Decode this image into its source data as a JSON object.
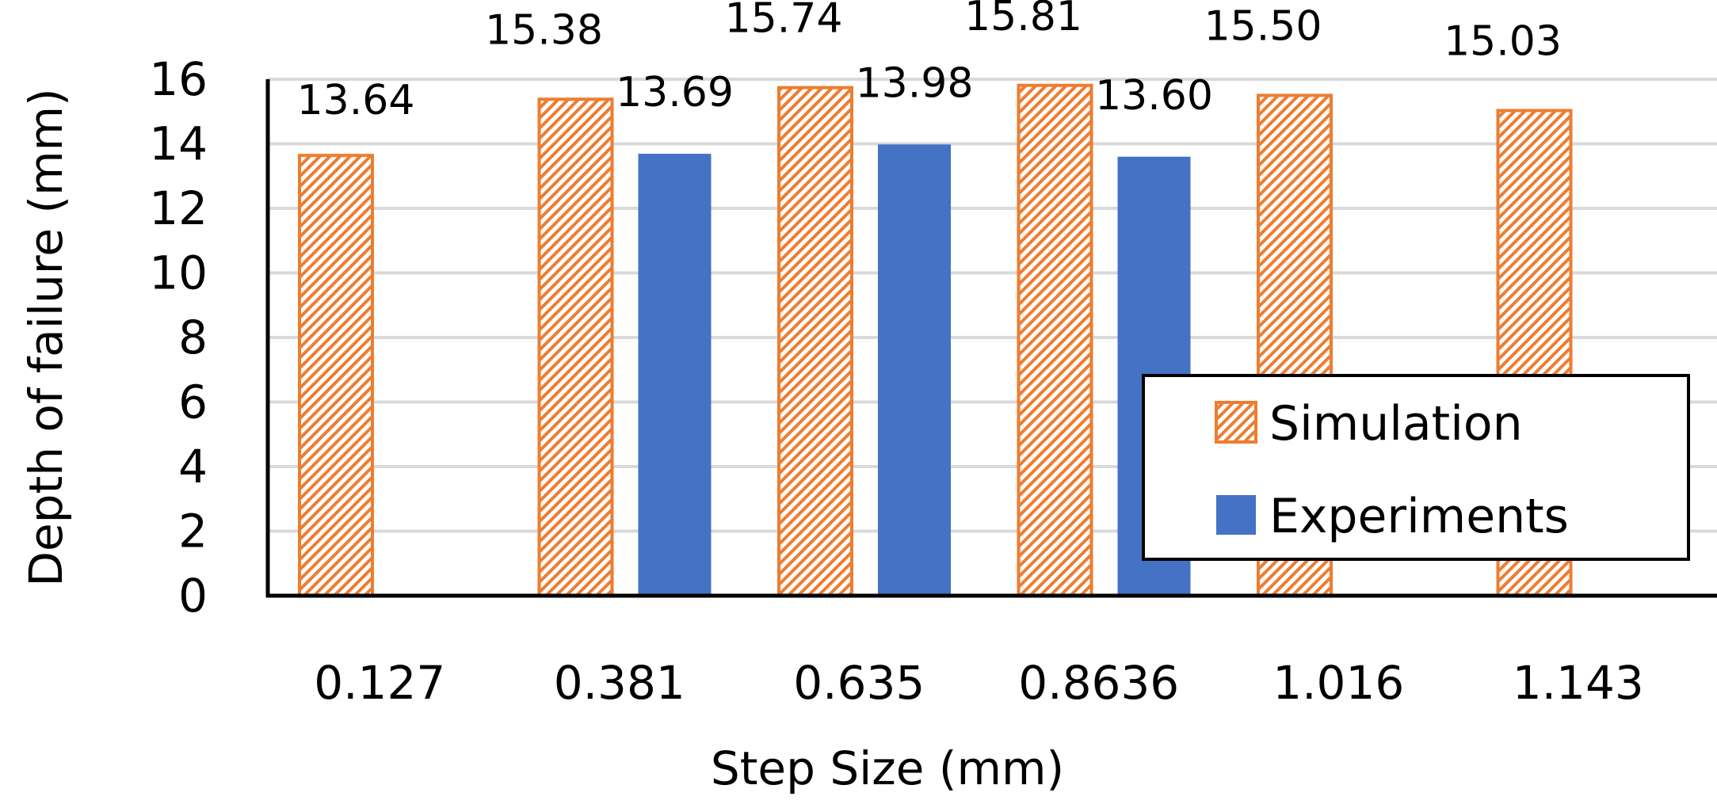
{
  "chart_data": {
    "type": "bar",
    "title": "",
    "xlabel": "Step Size (mm)",
    "ylabel": "Depth of failure (mm)",
    "ylim": [
      0,
      16
    ],
    "yticks": [
      0,
      2,
      4,
      6,
      8,
      10,
      12,
      14,
      16
    ],
    "grid": true,
    "legend_position": "lower-right",
    "categories": [
      "0.127",
      "0.381",
      "0.635",
      "0.8636",
      "1.016",
      "1.143"
    ],
    "series": [
      {
        "name": "Simulation",
        "color": "#ED7D31",
        "pattern": "diagonal-hatch",
        "values": [
          13.64,
          15.38,
          15.74,
          15.81,
          15.5,
          15.03
        ],
        "labels": [
          "13.64",
          "15.38",
          "15.74",
          "15.81",
          "15.50",
          "15.03"
        ]
      },
      {
        "name": "Experiments",
        "color": "#4472C4",
        "pattern": "solid",
        "values": [
          null,
          13.69,
          13.98,
          13.6,
          null,
          null
        ],
        "labels": [
          "",
          "13.69",
          "13.98",
          "13.60",
          "",
          ""
        ]
      }
    ]
  }
}
